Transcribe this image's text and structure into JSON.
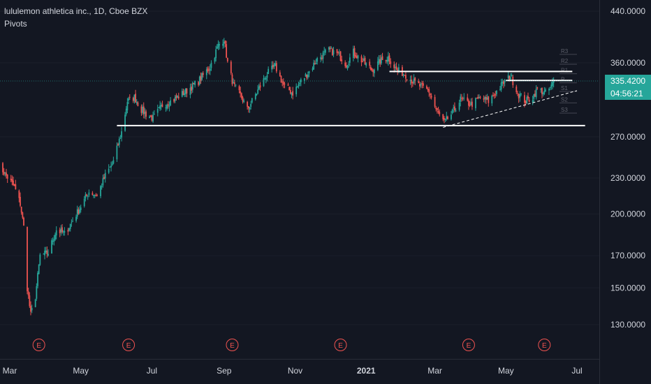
{
  "legend": {
    "title": "lululemon athletica inc., 1D, Cboe BZX",
    "indicator": "Pivots"
  },
  "colors": {
    "background": "#131722",
    "up": "#26a69a",
    "down": "#ef5350",
    "grid_text": "#d1d4dc",
    "line": "#ffffff",
    "pivot": "#434651",
    "earnings": "#ef5350",
    "price_badge": "#26a69a"
  },
  "price_badge": {
    "price": "335.4200",
    "countdown": "04:56:21"
  },
  "chart_data": {
    "type": "candlestick",
    "y_scale": "log",
    "ylim": [
      115,
      460
    ],
    "y_ticks": [
      {
        "value": 440,
        "label": "440.0000"
      },
      {
        "value": 360,
        "label": "360.0000"
      },
      {
        "value": 270,
        "label": "270.0000"
      },
      {
        "value": 230,
        "label": "230.0000"
      },
      {
        "value": 200,
        "label": "200.0000"
      },
      {
        "value": 170,
        "label": "170.0000"
      },
      {
        "value": 150,
        "label": "150.0000"
      },
      {
        "value": 130,
        "label": "130.0000"
      }
    ],
    "x_ticks": [
      {
        "label": "Mar",
        "date": "2020-03-01",
        "bold": false
      },
      {
        "label": "May",
        "date": "2020-05-01",
        "bold": false
      },
      {
        "label": "Jul",
        "date": "2020-07-01",
        "bold": false
      },
      {
        "label": "Sep",
        "date": "2020-09-01",
        "bold": false
      },
      {
        "label": "Nov",
        "date": "2020-11-01",
        "bold": false
      },
      {
        "label": "2021",
        "date": "2021-01-01",
        "bold": true
      },
      {
        "label": "Mar",
        "date": "2021-03-01",
        "bold": false
      },
      {
        "label": "May",
        "date": "2021-05-01",
        "bold": false
      },
      {
        "label": "Jul",
        "date": "2021-07-01",
        "bold": false
      }
    ],
    "price_path": [
      [
        "2020-02-20",
        243
      ],
      [
        "2020-02-27",
        232
      ],
      [
        "2020-03-05",
        222
      ],
      [
        "2020-03-10",
        208
      ],
      [
        "2020-03-13",
        190
      ],
      [
        "2020-03-16",
        150
      ],
      [
        "2020-03-19",
        135
      ],
      [
        "2020-03-23",
        145
      ],
      [
        "2020-03-27",
        170
      ],
      [
        "2020-04-03",
        172
      ],
      [
        "2020-04-10",
        188
      ],
      [
        "2020-04-17",
        185
      ],
      [
        "2020-04-24",
        195
      ],
      [
        "2020-05-01",
        206
      ],
      [
        "2020-05-08",
        218
      ],
      [
        "2020-05-15",
        215
      ],
      [
        "2020-05-22",
        232
      ],
      [
        "2020-05-29",
        245
      ],
      [
        "2020-06-05",
        275
      ],
      [
        "2020-06-10",
        310
      ],
      [
        "2020-06-16",
        315
      ],
      [
        "2020-06-22",
        300
      ],
      [
        "2020-06-26",
        295
      ],
      [
        "2020-07-02",
        290
      ],
      [
        "2020-07-10",
        305
      ],
      [
        "2020-07-20",
        312
      ],
      [
        "2020-07-30",
        322
      ],
      [
        "2020-08-10",
        335
      ],
      [
        "2020-08-20",
        355
      ],
      [
        "2020-08-27",
        385
      ],
      [
        "2020-09-01",
        395
      ],
      [
        "2020-09-04",
        360
      ],
      [
        "2020-09-09",
        330
      ],
      [
        "2020-09-16",
        315
      ],
      [
        "2020-09-21",
        300
      ],
      [
        "2020-09-28",
        318
      ],
      [
        "2020-10-08",
        345
      ],
      [
        "2020-10-15",
        355
      ],
      [
        "2020-10-22",
        330
      ],
      [
        "2020-10-30",
        320
      ],
      [
        "2020-11-06",
        335
      ],
      [
        "2020-11-13",
        348
      ],
      [
        "2020-11-20",
        365
      ],
      [
        "2020-11-30",
        378
      ],
      [
        "2020-12-08",
        372
      ],
      [
        "2020-12-15",
        358
      ],
      [
        "2020-12-21",
        375
      ],
      [
        "2020-12-29",
        362
      ],
      [
        "2021-01-06",
        350
      ],
      [
        "2021-01-13",
        362
      ],
      [
        "2021-01-20",
        368
      ],
      [
        "2021-01-27",
        350
      ],
      [
        "2021-02-03",
        345
      ],
      [
        "2021-02-10",
        335
      ],
      [
        "2021-02-17",
        328
      ],
      [
        "2021-02-24",
        322
      ],
      [
        "2021-03-02",
        300
      ],
      [
        "2021-03-09",
        285
      ],
      [
        "2021-03-16",
        296
      ],
      [
        "2021-03-23",
        312
      ],
      [
        "2021-04-01",
        306
      ],
      [
        "2021-04-09",
        314
      ],
      [
        "2021-04-16",
        310
      ],
      [
        "2021-04-23",
        322
      ],
      [
        "2021-04-30",
        335
      ],
      [
        "2021-05-05",
        342
      ],
      [
        "2021-05-12",
        318
      ],
      [
        "2021-05-18",
        310
      ],
      [
        "2021-05-24",
        315
      ],
      [
        "2021-05-28",
        325
      ],
      [
        "2021-06-04",
        320
      ],
      [
        "2021-06-09",
        328
      ],
      [
        "2021-06-11",
        335.42
      ]
    ],
    "horizontal_lines": [
      {
        "price": 282,
        "from": "2020-06-01",
        "to": "2021-07-08"
      },
      {
        "price": 348,
        "from": "2021-01-21",
        "to": "2021-06-27"
      },
      {
        "price": 336,
        "from": "2021-05-01",
        "to": "2021-06-27"
      }
    ],
    "trendline": {
      "from": [
        "2021-03-08",
        280
      ],
      "to": [
        "2021-07-01",
        323
      ]
    },
    "pivots": {
      "labels": [
        "R3",
        "R2",
        "R1",
        "P",
        "S1",
        "S2",
        "S3"
      ],
      "values": [
        372,
        358,
        345,
        333,
        322,
        308,
        296
      ],
      "from": "2021-06-16",
      "to": "2021-07-01"
    },
    "earnings_dates": [
      "2020-03-26",
      "2020-06-11",
      "2020-09-08",
      "2020-12-10",
      "2021-03-30",
      "2021-06-03"
    ],
    "earnings_label": "E",
    "last_price": 335.42
  }
}
